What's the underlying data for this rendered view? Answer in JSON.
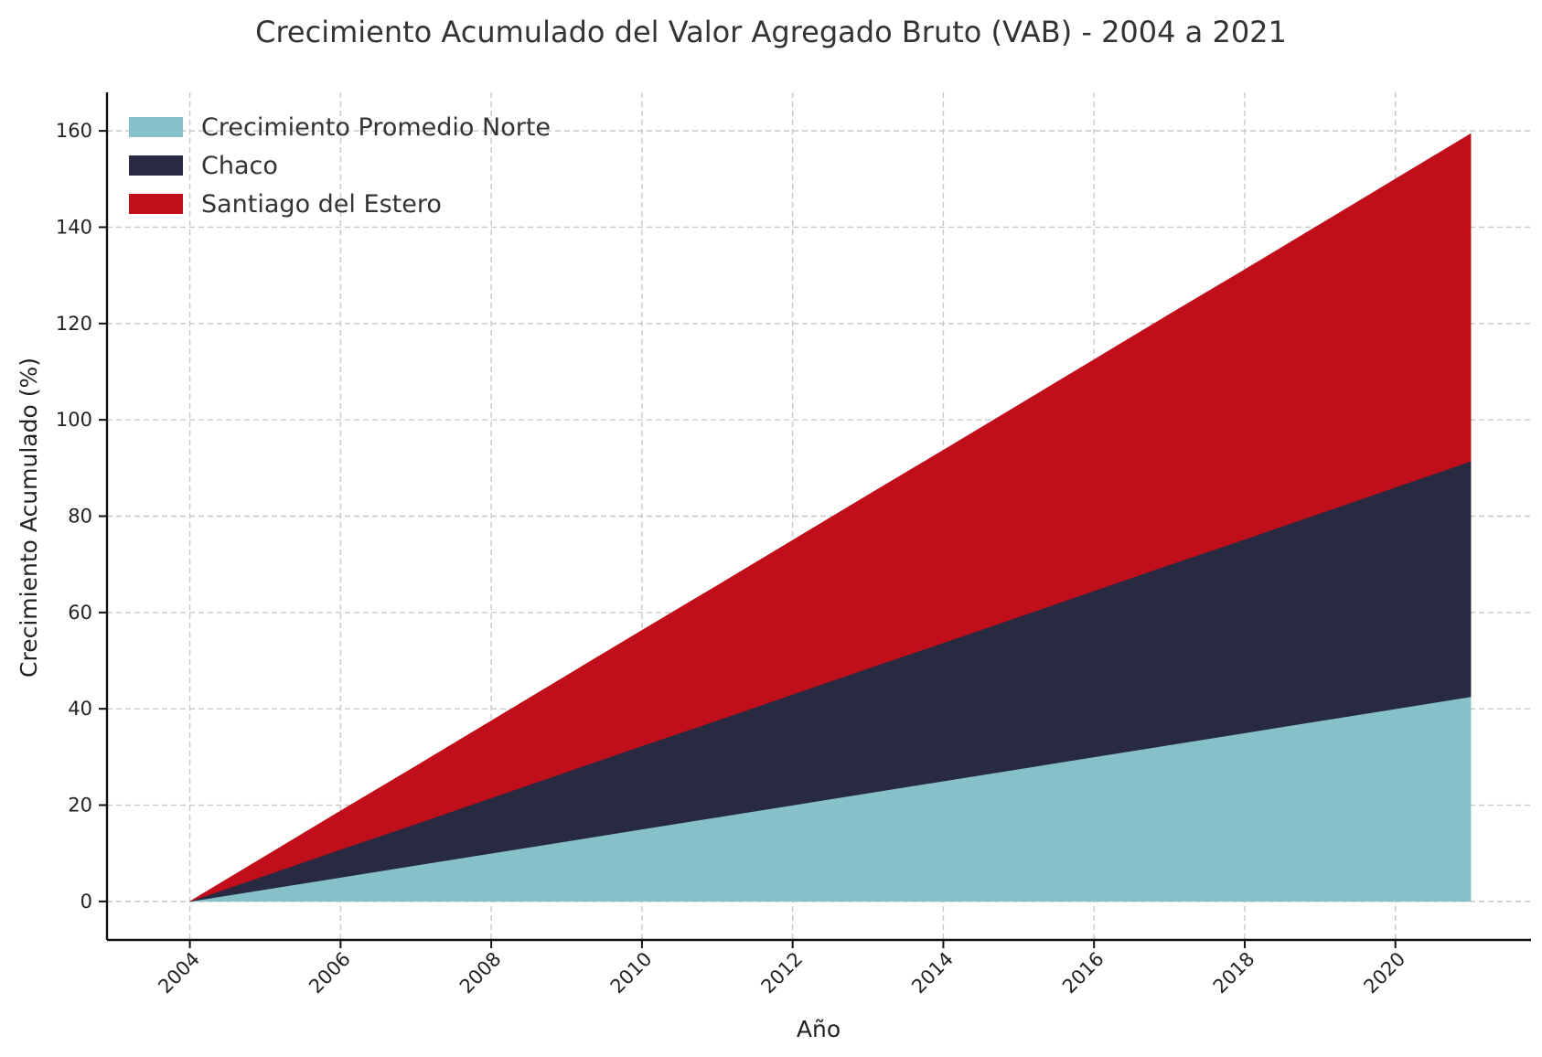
{
  "chart_data": {
    "type": "area",
    "stacked": true,
    "title": "Crecimiento Acumulado del Valor Agregado Bruto (VAB) - 2004 a 2021",
    "xlabel": "Año",
    "ylabel": "Crecimiento Acumulado (%)",
    "x": [
      2004,
      2005,
      2006,
      2007,
      2008,
      2009,
      2010,
      2011,
      2012,
      2013,
      2014,
      2015,
      2016,
      2017,
      2018,
      2019,
      2020,
      2021
    ],
    "series": [
      {
        "name": "Crecimiento Promedio Norte",
        "color": "#86c0c8",
        "values": [
          0,
          2.5,
          5,
          7.5,
          10,
          12.5,
          15,
          17.5,
          20,
          22.5,
          25,
          27.5,
          30,
          32.5,
          35,
          37.5,
          40,
          42.5
        ]
      },
      {
        "name": "Chaco",
        "color": "#272a40",
        "values": [
          0,
          2.9,
          5.8,
          8.6,
          11.5,
          14.4,
          17.3,
          20.1,
          23,
          25.9,
          28.7,
          31.6,
          34.5,
          37.4,
          40.2,
          43.1,
          46,
          48.9
        ]
      },
      {
        "name": "Santiago del Estero",
        "color": "#c00e1a",
        "values": [
          0,
          4,
          8,
          12,
          16,
          20,
          24,
          28,
          32,
          36,
          40,
          44,
          48,
          52,
          56,
          60,
          64,
          68
        ]
      }
    ],
    "xlim": [
      2002.9,
      2021.8
    ],
    "ylim": [
      -8,
      168
    ],
    "xticks": [
      "2004",
      "2006",
      "2008",
      "2010",
      "2012",
      "2014",
      "2016",
      "2018",
      "2020"
    ],
    "yticks": [
      "0",
      "20",
      "40",
      "60",
      "80",
      "100",
      "120",
      "140",
      "160"
    ],
    "grid": true,
    "legend_position": "top-left"
  }
}
